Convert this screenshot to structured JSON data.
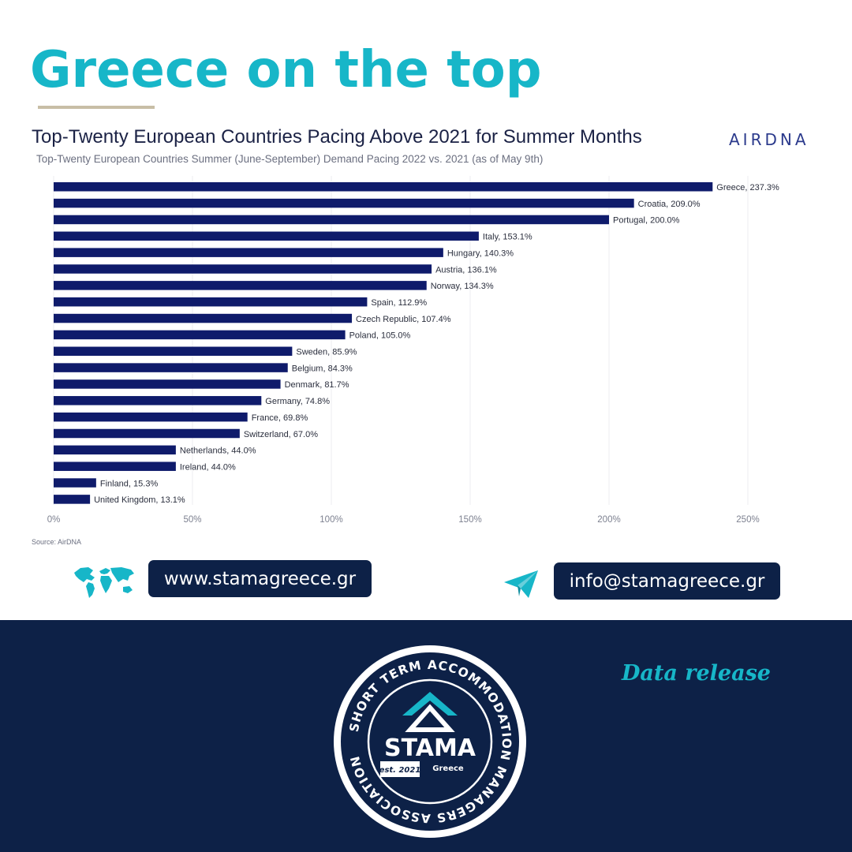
{
  "headline": "Greece on the top",
  "brand": "AIRDNA",
  "chart_data": {
    "type": "bar",
    "orientation": "horizontal",
    "title": "Top-Twenty European Countries Pacing Above 2021 for Summer Months",
    "subtitle": "Top-Twenty European Countries Summer (June-September) Demand Pacing 2022 vs. 2021 (as of May 9th)",
    "source": "Source: AirDNA",
    "categories": [
      "Greece",
      "Croatia",
      "Portugal",
      "Italy",
      "Hungary",
      "Austria",
      "Norway",
      "Spain",
      "Czech Republic",
      "Poland",
      "Sweden",
      "Belgium",
      "Denmark",
      "Germany",
      "France",
      "Switzerland",
      "Netherlands",
      "Ireland",
      "Finland",
      "United Kingdom"
    ],
    "values": [
      237.3,
      209.0,
      200.0,
      153.1,
      140.3,
      136.1,
      134.3,
      112.9,
      107.4,
      105.0,
      85.9,
      84.3,
      81.7,
      74.8,
      69.8,
      67.0,
      44.0,
      44.0,
      15.3,
      13.1
    ],
    "labels": [
      "Greece, 237.3%",
      "Croatia, 209.0%",
      "Portugal, 200.0%",
      "Italy, 153.1%",
      "Hungary, 140.3%",
      "Austria, 136.1%",
      "Norway, 134.3%",
      "Spain, 112.9%",
      "Czech Republic, 107.4%",
      "Poland, 105.0%",
      "Sweden, 85.9%",
      "Belgium, 84.3%",
      "Denmark, 81.7%",
      "Germany, 74.8%",
      "France, 69.8%",
      "Switzerland, 67.0%",
      "Netherlands, 44.0%",
      "Ireland, 44.0%",
      "Finland, 15.3%",
      "United Kingdom, 13.1%"
    ],
    "xticks": [
      0,
      50,
      100,
      150,
      200,
      250
    ],
    "xtick_labels": [
      "0%",
      "50%",
      "100%",
      "150%",
      "200%",
      "250%"
    ],
    "xlim": [
      0,
      250
    ],
    "grid": true,
    "bar_color": "#0f1b6b"
  },
  "contacts": {
    "website": "www.stamagreece.gr",
    "email": "info@stamagreece.gr"
  },
  "footer": {
    "tagline": "Data release",
    "badge": {
      "ring_text": "SHORT TERM ACCOMMODATION MANAGERS ASSOCIATION",
      "name": "STAMA",
      "country": "Greece",
      "est": "est. 2021"
    }
  },
  "colors": {
    "accent": "#17b6c8",
    "navy": "#0d2147",
    "rule": "#c8bea6"
  }
}
